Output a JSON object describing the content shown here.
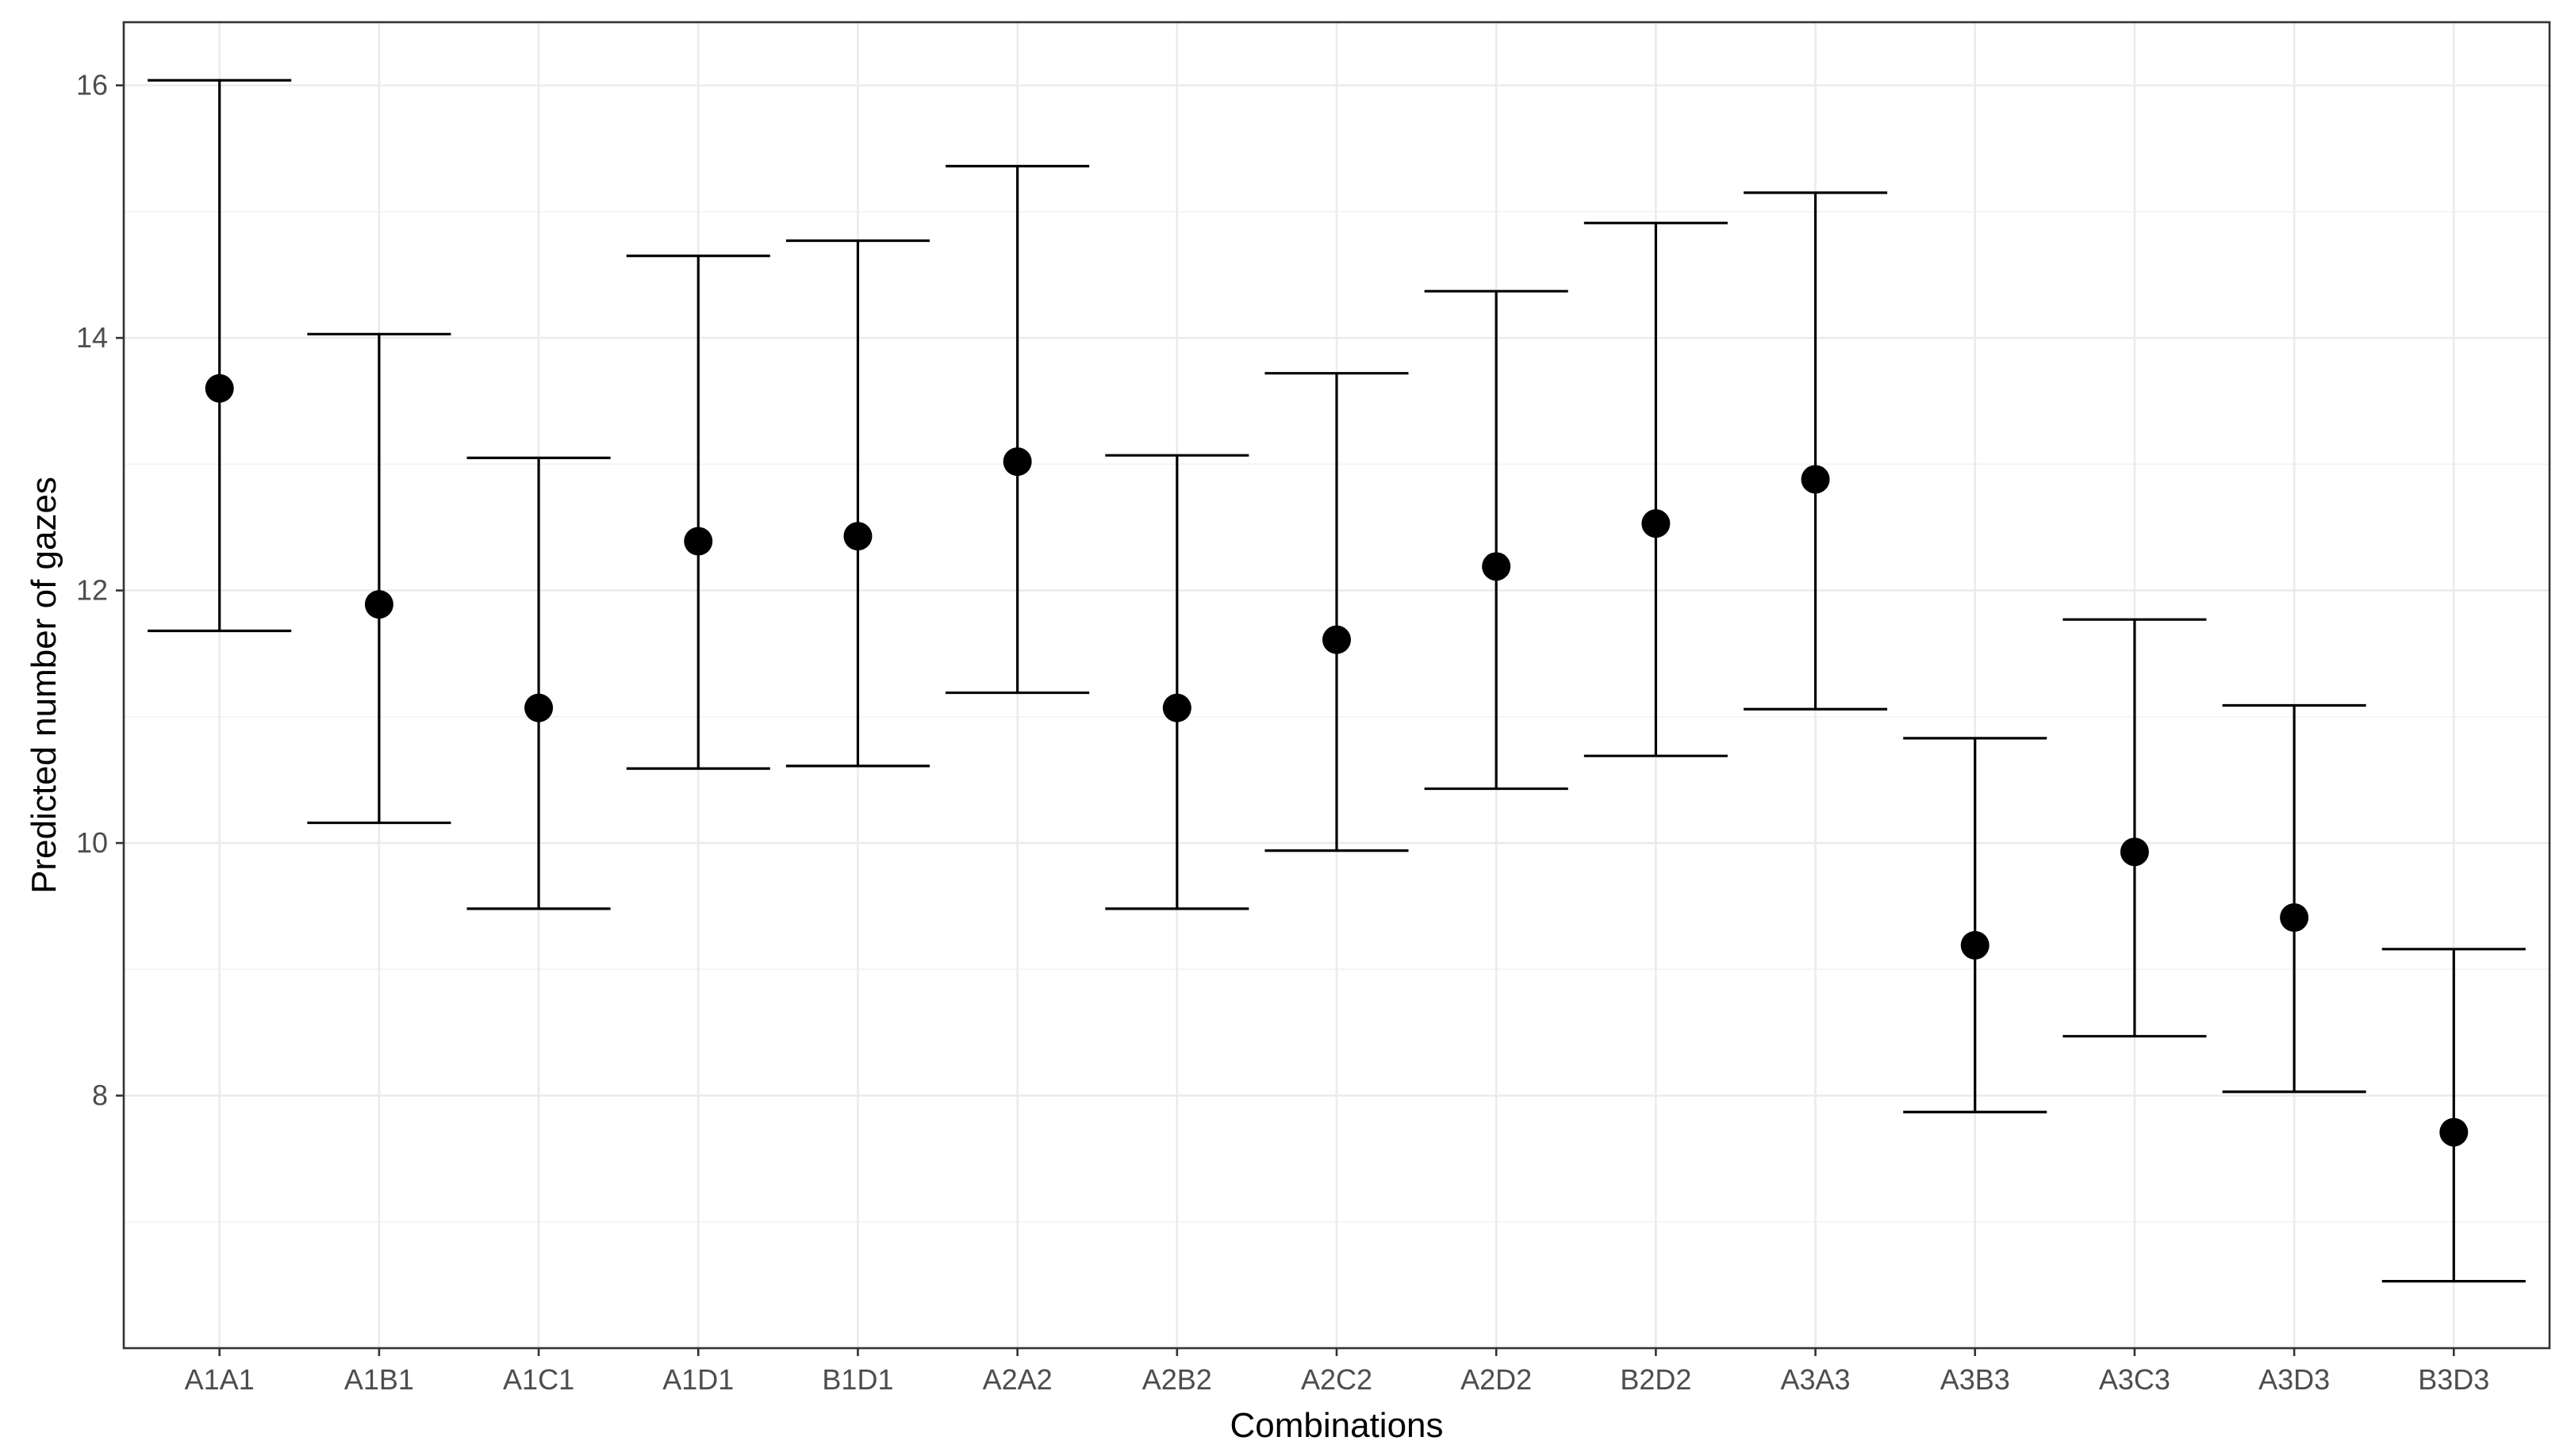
{
  "chart_data": {
    "type": "scatter",
    "title": "",
    "xlabel": "Combinations",
    "ylabel": "Predicted number of gazes",
    "categories": [
      "A1A1",
      "A1B1",
      "A1C1",
      "A1D1",
      "B1D1",
      "A2A2",
      "A2B2",
      "A2C2",
      "A2D2",
      "B2D2",
      "A3A3",
      "A3B3",
      "A3C3",
      "A3D3",
      "B3D3"
    ],
    "series": [
      {
        "values": [
          13.6,
          11.89,
          11.07,
          12.39,
          12.43,
          13.02,
          11.07,
          11.61,
          12.19,
          12.53,
          12.88,
          9.19,
          9.93,
          9.41,
          7.71
        ],
        "lower": [
          11.68,
          10.16,
          9.48,
          10.59,
          10.61,
          11.19,
          9.48,
          9.94,
          10.43,
          10.69,
          11.06,
          7.87,
          8.47,
          8.03,
          6.53
        ],
        "upper": [
          16.04,
          14.03,
          13.05,
          14.65,
          14.77,
          15.36,
          13.07,
          13.72,
          14.37,
          14.91,
          15.15,
          10.83,
          11.77,
          11.09,
          9.16
        ]
      }
    ],
    "yticks": [
      8,
      10,
      12,
      14,
      16
    ],
    "ylim": [
      6.0,
      16.5
    ],
    "grid": true,
    "legend": "none",
    "point_color": "#000000",
    "errorbar_color": "#000000"
  }
}
